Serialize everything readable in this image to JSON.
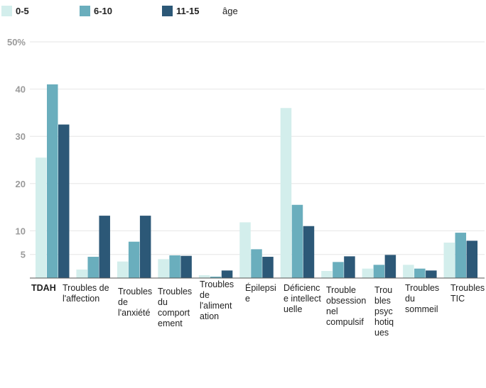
{
  "legend": {
    "items": [
      {
        "label": "0-5",
        "color": "#d3eeec"
      },
      {
        "label": "6-10",
        "color": "#6aaebd"
      },
      {
        "label": "11-15",
        "color": "#2c5877"
      }
    ],
    "unit": "âge"
  },
  "chart_data": {
    "type": "bar",
    "categories": [
      "TDAH",
      "Troubles de l'affection",
      "Troubles de l'anxiété",
      "Troubles du comportement",
      "Troubles de l'alimentation",
      "Épilepsie",
      "Déficience intellectuelle",
      "Troubles obsessionnel compulsif",
      "Troubles psychotiques",
      "Troubles du sommeil",
      "Troubles TIC"
    ],
    "category_lines": [
      [
        "TDAH"
      ],
      [
        "Troubles de",
        "l'affection"
      ],
      [
        "Troubles",
        "de",
        "l'anxiété"
      ],
      [
        "Troubles",
        "du",
        "comport",
        "ement"
      ],
      [
        "Troubles",
        "de",
        "l'aliment",
        "ation"
      ],
      [
        "Épilepsi",
        "e"
      ],
      [
        "Déficienc",
        "e intellect",
        "uelle"
      ],
      [
        "Trouble",
        "obsession",
        "nel",
        "compulsif"
      ],
      [
        "Trou",
        "bles",
        "psyc",
        "hotiq",
        "ues"
      ],
      [
        "Troubles",
        "du",
        "sommeil"
      ],
      [
        "Troubles",
        "TIC"
      ]
    ],
    "series": [
      {
        "name": "0-5",
        "color": "#d3eeec",
        "values": [
          25.5,
          1.8,
          3.5,
          4,
          0.6,
          11.8,
          36,
          1.5,
          2,
          2.8,
          7.5
        ]
      },
      {
        "name": "6-10",
        "color": "#6aaebd",
        "values": [
          41,
          4.5,
          7.7,
          4.8,
          0.3,
          6.1,
          15.5,
          3.4,
          2.8,
          2,
          9.6
        ]
      },
      {
        "name": "11-15",
        "color": "#2c5877",
        "values": [
          32.5,
          13.2,
          13.2,
          4.7,
          1.6,
          4.5,
          11,
          4.6,
          4.9,
          1.6,
          7.9
        ]
      }
    ],
    "yticks": [
      "5",
      "10",
      "20",
      "30",
      "40",
      "50%"
    ],
    "ylim": [
      0,
      50
    ],
    "grid": true,
    "legend_position": "top-left"
  }
}
